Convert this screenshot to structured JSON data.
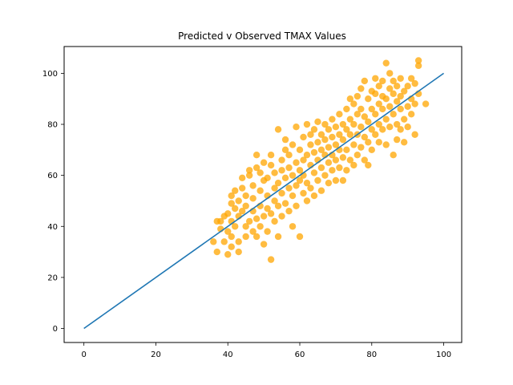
{
  "chart_data": {
    "type": "scatter",
    "title": "Predicted v Observed TMAX Values",
    "xlabel": "",
    "ylabel": "",
    "xlim": [
      -5.5,
      105
    ],
    "ylim": [
      -5.5,
      110.5
    ],
    "xticks": [
      0,
      20,
      40,
      60,
      80,
      100
    ],
    "yticks": [
      0,
      20,
      40,
      60,
      80,
      100
    ],
    "grid": false,
    "reference_line": {
      "x": [
        0,
        100
      ],
      "y": [
        0,
        100
      ],
      "color": "#1f77b4"
    },
    "scatter_color": "#ffa500",
    "scatter_alpha": 0.75,
    "scatter_summary": {
      "count_approx": 1200,
      "x_range": [
        36,
        95
      ],
      "y_range": [
        27,
        105
      ],
      "note": "dense cloud of points following the y=x trend"
    },
    "points": [
      [
        37,
        42
      ],
      [
        38,
        42
      ],
      [
        36,
        34
      ],
      [
        38,
        39
      ],
      [
        39,
        34
      ],
      [
        37,
        30
      ],
      [
        39,
        44
      ],
      [
        40,
        45
      ],
      [
        40,
        38
      ],
      [
        40,
        29
      ],
      [
        41,
        32
      ],
      [
        41,
        36
      ],
      [
        41,
        42
      ],
      [
        41,
        49
      ],
      [
        41,
        52
      ],
      [
        42,
        54
      ],
      [
        42,
        47
      ],
      [
        42,
        40
      ],
      [
        43,
        30
      ],
      [
        43,
        34
      ],
      [
        43,
        44
      ],
      [
        43,
        50
      ],
      [
        44,
        55
      ],
      [
        44,
        59
      ],
      [
        44,
        46
      ],
      [
        45,
        36
      ],
      [
        45,
        40
      ],
      [
        45,
        48
      ],
      [
        45,
        52
      ],
      [
        46,
        60
      ],
      [
        46,
        62
      ],
      [
        46,
        42
      ],
      [
        47,
        38
      ],
      [
        47,
        46
      ],
      [
        47,
        51
      ],
      [
        47,
        56
      ],
      [
        48,
        68
      ],
      [
        48,
        63
      ],
      [
        48,
        43
      ],
      [
        48,
        36
      ],
      [
        49,
        40
      ],
      [
        49,
        48
      ],
      [
        49,
        54
      ],
      [
        49,
        61
      ],
      [
        50,
        65
      ],
      [
        50,
        58
      ],
      [
        50,
        44
      ],
      [
        50,
        33
      ],
      [
        51,
        38
      ],
      [
        51,
        47
      ],
      [
        51,
        52
      ],
      [
        51,
        59
      ],
      [
        52,
        64
      ],
      [
        52,
        68
      ],
      [
        52,
        27
      ],
      [
        52,
        45
      ],
      [
        53,
        50
      ],
      [
        53,
        55
      ],
      [
        53,
        61
      ],
      [
        53,
        42
      ],
      [
        54,
        78
      ],
      [
        54,
        57
      ],
      [
        54,
        48
      ],
      [
        54,
        36
      ],
      [
        55,
        62
      ],
      [
        55,
        66
      ],
      [
        55,
        53
      ],
      [
        55,
        44
      ],
      [
        56,
        59
      ],
      [
        56,
        70
      ],
      [
        56,
        74
      ],
      [
        56,
        49
      ],
      [
        57,
        55
      ],
      [
        57,
        63
      ],
      [
        57,
        46
      ],
      [
        57,
        68
      ],
      [
        58,
        52
      ],
      [
        58,
        60
      ],
      [
        58,
        72
      ],
      [
        58,
        40
      ],
      [
        59,
        79
      ],
      [
        59,
        65
      ],
      [
        59,
        56
      ],
      [
        59,
        48
      ],
      [
        60,
        36
      ],
      [
        60,
        58
      ],
      [
        60,
        62
      ],
      [
        60,
        70
      ],
      [
        61,
        75
      ],
      [
        61,
        53
      ],
      [
        61,
        66
      ],
      [
        61,
        60
      ],
      [
        62,
        80
      ],
      [
        62,
        57
      ],
      [
        62,
        68
      ],
      [
        62,
        50
      ],
      [
        63,
        64
      ],
      [
        63,
        72
      ],
      [
        63,
        76
      ],
      [
        63,
        55
      ],
      [
        64,
        61
      ],
      [
        64,
        69
      ],
      [
        64,
        78
      ],
      [
        64,
        52
      ],
      [
        65,
        81
      ],
      [
        65,
        66
      ],
      [
        65,
        58
      ],
      [
        65,
        73
      ],
      [
        66,
        63
      ],
      [
        66,
        70
      ],
      [
        66,
        76
      ],
      [
        66,
        54
      ],
      [
        67,
        68
      ],
      [
        67,
        60
      ],
      [
        67,
        74
      ],
      [
        67,
        80
      ],
      [
        68,
        65
      ],
      [
        68,
        71
      ],
      [
        68,
        57
      ],
      [
        68,
        78
      ],
      [
        69,
        62
      ],
      [
        69,
        75
      ],
      [
        69,
        68
      ],
      [
        69,
        82
      ],
      [
        70,
        72
      ],
      [
        70,
        66
      ],
      [
        70,
        79
      ],
      [
        70,
        58
      ],
      [
        71,
        76
      ],
      [
        71,
        70
      ],
      [
        71,
        84
      ],
      [
        71,
        63
      ],
      [
        72,
        80
      ],
      [
        72,
        74
      ],
      [
        72,
        67
      ],
      [
        72,
        58
      ],
      [
        73,
        78
      ],
      [
        73,
        86
      ],
      [
        73,
        70
      ],
      [
        73,
        62
      ],
      [
        74,
        82
      ],
      [
        74,
        76
      ],
      [
        74,
        90
      ],
      [
        74,
        66
      ],
      [
        75,
        88
      ],
      [
        75,
        80
      ],
      [
        75,
        72
      ],
      [
        75,
        64
      ],
      [
        76,
        91
      ],
      [
        76,
        84
      ],
      [
        76,
        76
      ],
      [
        76,
        68
      ],
      [
        77,
        86
      ],
      [
        77,
        94
      ],
      [
        77,
        79
      ],
      [
        77,
        71
      ],
      [
        78,
        83
      ],
      [
        78,
        97
      ],
      [
        78,
        75
      ],
      [
        78,
        66
      ],
      [
        79,
        90
      ],
      [
        79,
        81
      ],
      [
        79,
        73
      ],
      [
        79,
        64
      ],
      [
        80,
        86
      ],
      [
        80,
        93
      ],
      [
        80,
        78
      ],
      [
        80,
        70
      ],
      [
        81,
        84
      ],
      [
        81,
        98
      ],
      [
        81,
        76
      ],
      [
        81,
        92
      ],
      [
        82,
        88
      ],
      [
        82,
        80
      ],
      [
        82,
        95
      ],
      [
        82,
        73
      ],
      [
        83,
        91
      ],
      [
        83,
        86
      ],
      [
        83,
        97
      ],
      [
        83,
        78
      ],
      [
        84,
        104
      ],
      [
        84,
        82
      ],
      [
        84,
        90
      ],
      [
        84,
        72
      ],
      [
        85,
        94
      ],
      [
        85,
        87
      ],
      [
        85,
        79
      ],
      [
        85,
        100
      ],
      [
        86,
        84
      ],
      [
        86,
        92
      ],
      [
        86,
        68
      ],
      [
        86,
        97
      ],
      [
        87,
        89
      ],
      [
        87,
        95
      ],
      [
        87,
        80
      ],
      [
        87,
        74
      ],
      [
        88,
        86
      ],
      [
        88,
        91
      ],
      [
        88,
        78
      ],
      [
        88,
        98
      ],
      [
        89,
        93
      ],
      [
        89,
        82
      ],
      [
        89,
        73
      ],
      [
        90,
        87
      ],
      [
        90,
        95
      ],
      [
        90,
        79
      ],
      [
        91,
        90
      ],
      [
        91,
        84
      ],
      [
        91,
        98
      ],
      [
        92,
        96
      ],
      [
        92,
        88
      ],
      [
        92,
        76
      ],
      [
        93,
        105
      ],
      [
        93,
        103
      ],
      [
        93,
        92
      ],
      [
        95,
        88
      ]
    ]
  }
}
